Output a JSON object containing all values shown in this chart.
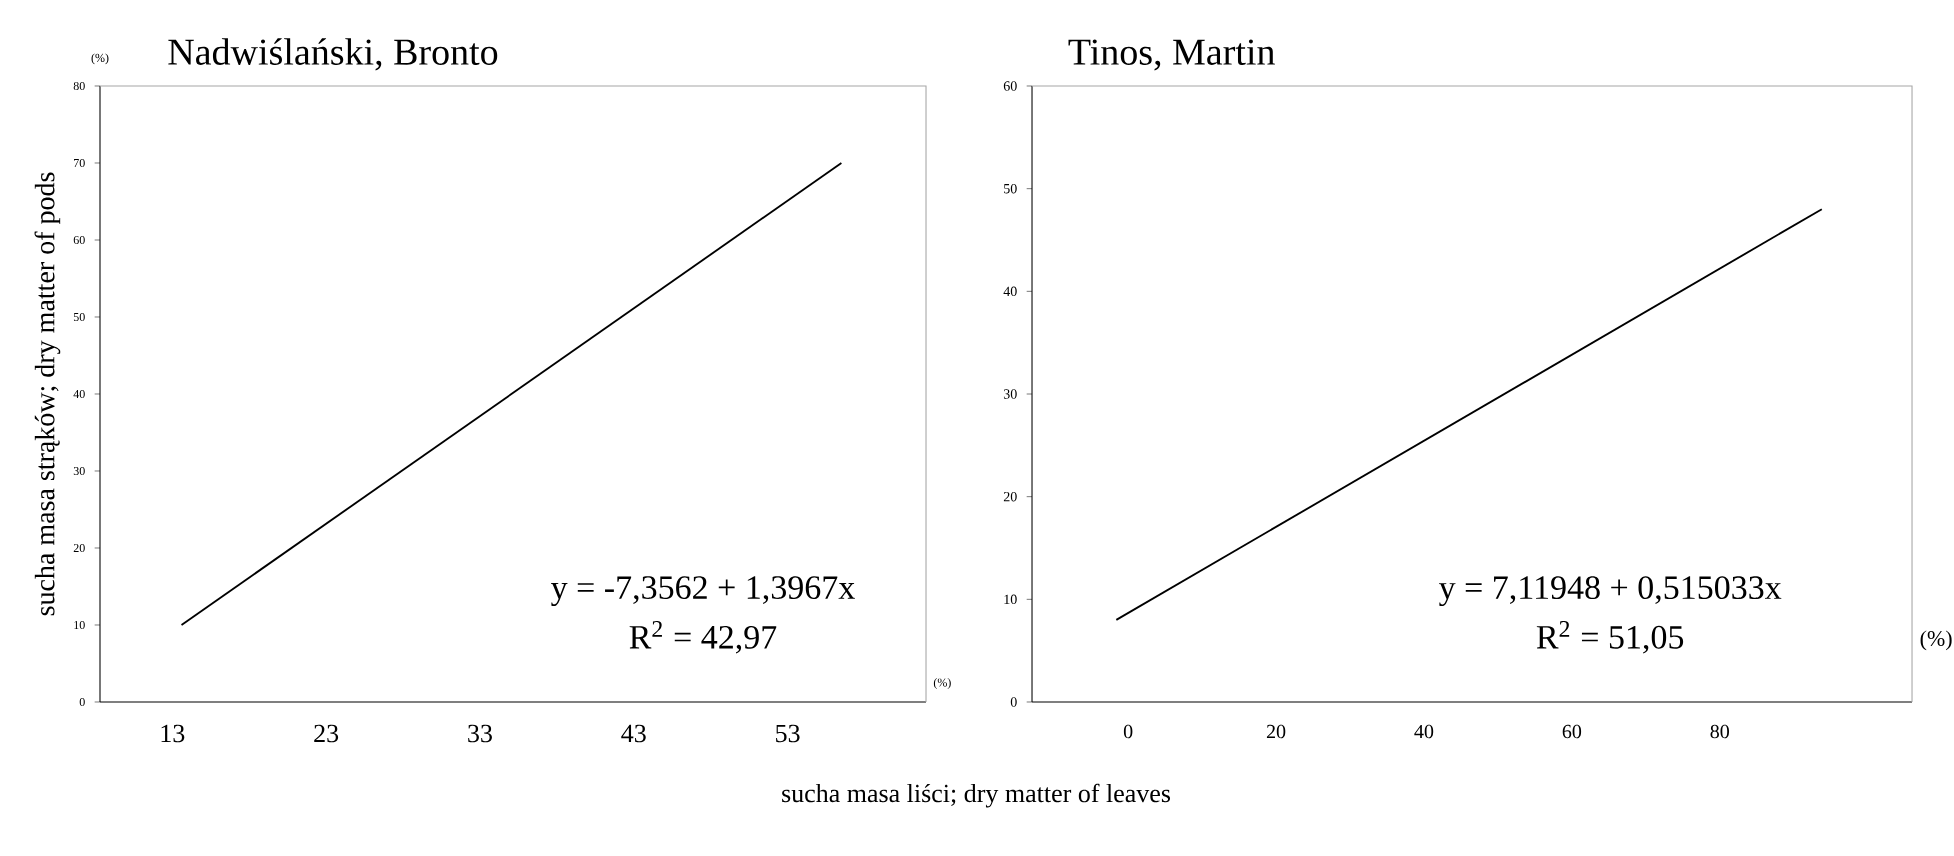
{
  "chart_data": [
    {
      "type": "line",
      "title": "Nadwiślański, Bronto",
      "ylabel": "sucha masa strąków; dry matter of pods",
      "xlabel": "sucha masa liści; dry matter of leaves",
      "series": [
        {
          "color": "#000000",
          "x": [
            13.6,
            56.5
          ],
          "values": [
            10,
            70
          ]
        }
      ],
      "xlim": [
        8.3,
        62
      ],
      "xticks": [
        13,
        23,
        33,
        43,
        53
      ],
      "ylim": [
        0,
        80
      ],
      "yticks": [
        0,
        10,
        20,
        30,
        40,
        50,
        60,
        70,
        80
      ],
      "grid": false,
      "marker": "none",
      "line_style": "solid",
      "annotations": [
        "y = -7,3562 + 1,3967x",
        "R$^{2}$ = 42,97",
        "(%)",
        "(%)"
      ]
    },
    {
      "type": "line",
      "title": "Tinos, Martin",
      "series": [
        {
          "color": "#000000",
          "x": [
            -1.6,
            93.8
          ],
          "values": [
            8,
            48
          ]
        }
      ],
      "xlim": [
        -13,
        106
      ],
      "xticks": [
        0,
        20,
        40,
        60,
        80
      ],
      "ylim": [
        0,
        60
      ],
      "yticks": [
        0,
        10,
        20,
        30,
        40,
        50,
        60
      ],
      "grid": false,
      "marker": "none",
      "line_style": "solid",
      "annotations": [
        "y = 7,11948 + 0,515033x",
        "R$^{2}$ = 51,05",
        "(%)"
      ]
    }
  ]
}
